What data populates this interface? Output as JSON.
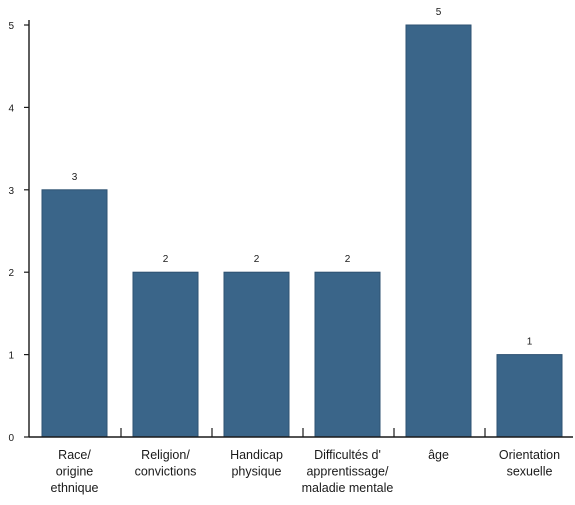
{
  "chart_data": {
    "type": "bar",
    "title": "",
    "xlabel": "",
    "ylabel": "",
    "categories": [
      "Race/ origine ethnique",
      "Religion/ convictions",
      "Handicap physique",
      "Difficultés d' apprentissage/ maladie mentale",
      "âge",
      "Orientation sexuelle"
    ],
    "category_lines": [
      [
        "Race/",
        "origine",
        "ethnique"
      ],
      [
        "Religion/",
        "convictions"
      ],
      [
        "Handicap",
        "physique"
      ],
      [
        "Difficultés d'",
        "apprentissage/",
        "maladie mentale"
      ],
      [
        "âge"
      ],
      [
        "Orientation",
        "sexuelle"
      ]
    ],
    "values": [
      3,
      2,
      2,
      2,
      5,
      1
    ],
    "data_labels": [
      "3",
      "2",
      "2",
      "2",
      "5",
      "1"
    ],
    "y_ticks": [
      0,
      1,
      2,
      3,
      4,
      5
    ],
    "y_tick_labels": [
      "0",
      "1",
      "2",
      "3",
      "4",
      "5"
    ],
    "ylim": [
      0,
      5
    ],
    "grid": false,
    "bar_color": "#3a6589",
    "bar_edge_color": "#2e5272",
    "axis_color": "#1a1a1a"
  }
}
